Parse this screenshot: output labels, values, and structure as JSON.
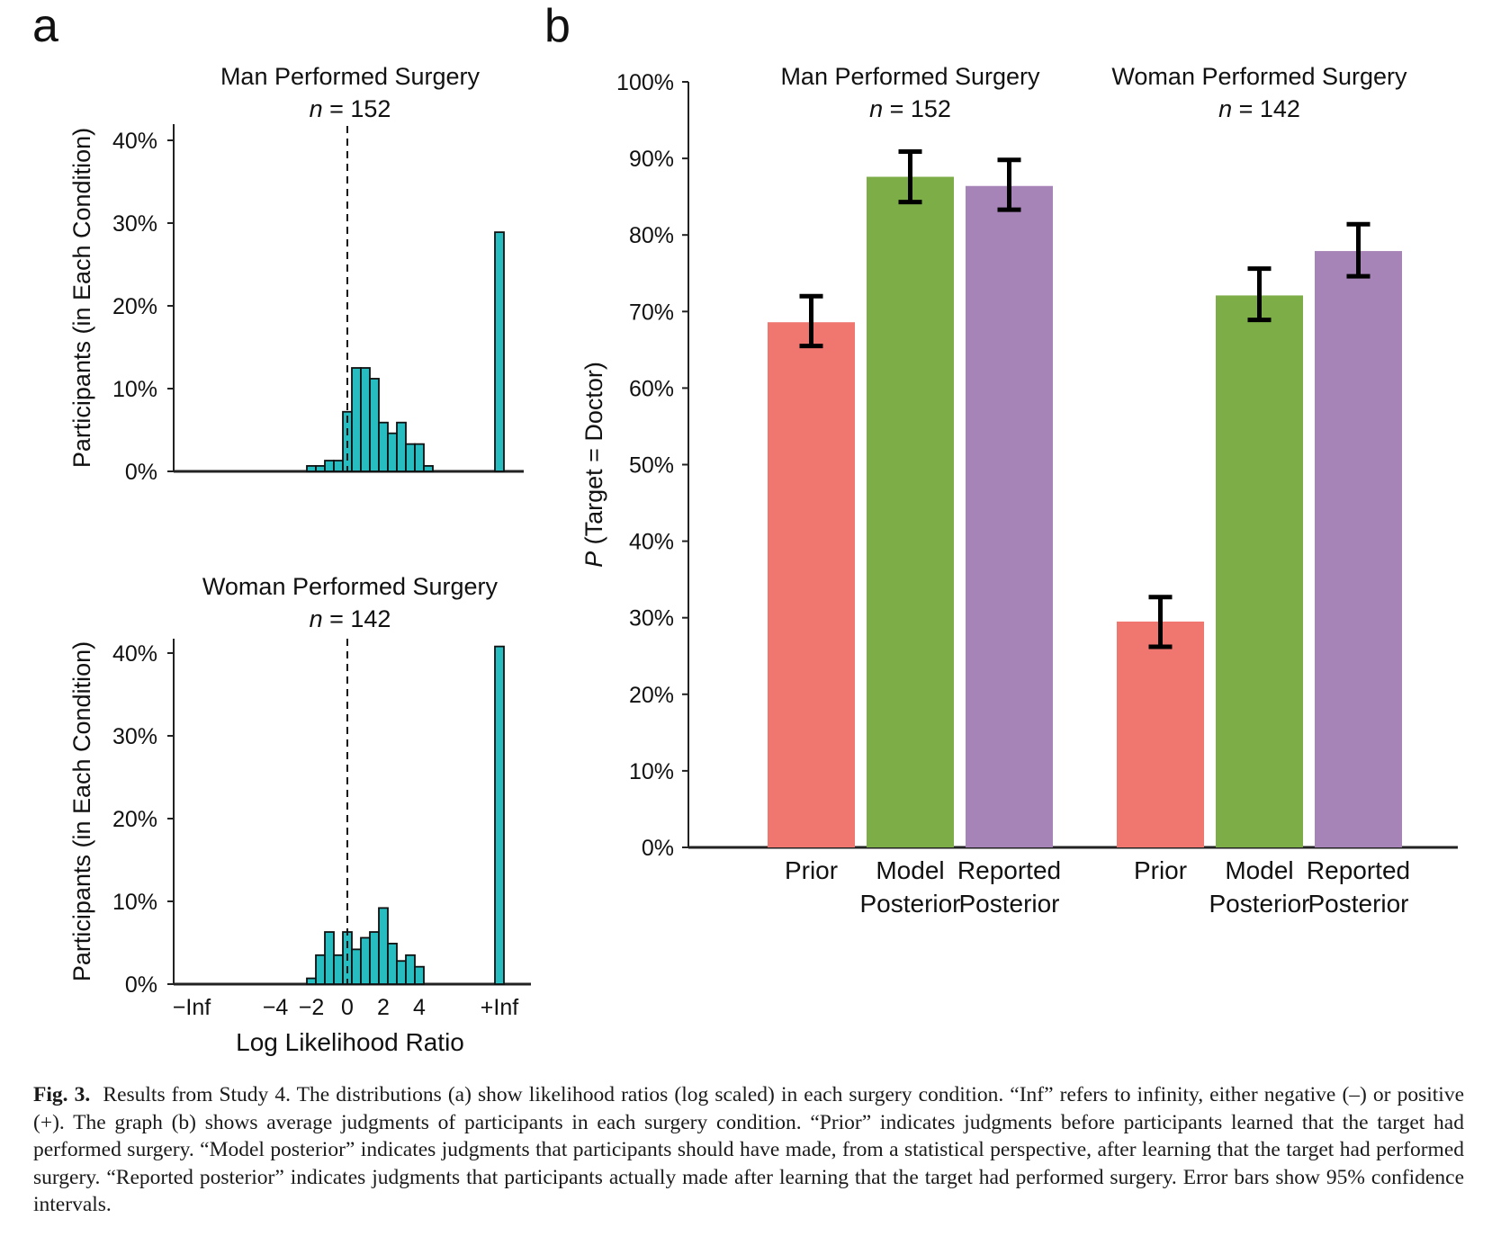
{
  "chart_data": [
    {
      "panel": "a",
      "type": "bar",
      "subtype": "histogram",
      "title": "Man Performed Surgery",
      "n_label": "n",
      "n_value": "= 152",
      "ylabel": "Participants (in Each Condition)",
      "xlabel": "",
      "ylim": [
        0,
        0.42
      ],
      "yticks": [
        0,
        0.1,
        0.2,
        0.3,
        0.4
      ],
      "ytick_labels": [
        "0%",
        "10%",
        "20%",
        "30%",
        "40%"
      ],
      "xticks": [],
      "bin_width": 0.5,
      "bin_centers": [
        -2.0,
        -1.5,
        -1.0,
        -0.5,
        0.0,
        0.5,
        1.0,
        1.5,
        2.0,
        2.5,
        3.0,
        3.5,
        4.0,
        4.5
      ],
      "values": [
        0.0066,
        0.0066,
        0.013,
        0.013,
        0.072,
        0.125,
        0.125,
        0.112,
        0.059,
        0.046,
        0.059,
        0.033,
        0.033,
        0.0066
      ],
      "neg_inf_value": 0,
      "pos_inf_value": 0.289,
      "reference_line_x": 0,
      "bar_color": "#26bcc0"
    },
    {
      "panel": "a",
      "type": "bar",
      "subtype": "histogram",
      "title": "Woman Performed Surgery",
      "n_label": "n",
      "n_value": " = 142",
      "ylabel": "Participants (in Each Condition)",
      "xlabel": "Log Likelihood Ratio",
      "ylim": [
        0,
        0.42
      ],
      "yticks": [
        0,
        0.1,
        0.2,
        0.3,
        0.4
      ],
      "ytick_labels": [
        "0%",
        "10%",
        "20%",
        "30%",
        "40%"
      ],
      "xtick_labels": [
        "−Inf",
        "−4",
        "−2",
        "0",
        "2",
        "4",
        "+Inf"
      ],
      "xtick_values": [
        "-inf",
        -4,
        -2,
        0,
        2,
        4,
        "+inf"
      ],
      "bin_width": 0.5,
      "bin_centers": [
        -2.0,
        -1.5,
        -1.0,
        -0.5,
        0.0,
        0.5,
        1.0,
        1.5,
        2.0,
        2.5,
        3.0,
        3.5,
        4.0
      ],
      "values": [
        0.007,
        0.035,
        0.063,
        0.035,
        0.063,
        0.042,
        0.056,
        0.063,
        0.092,
        0.049,
        0.028,
        0.035,
        0.021
      ],
      "neg_inf_value": 0,
      "pos_inf_value": 0.408,
      "reference_line_x": 0,
      "bar_color": "#26bcc0"
    },
    {
      "panel": "b",
      "type": "bar",
      "subtype": "grouped",
      "ylabel_italic": "P",
      "ylabel_rest": " (Target = Doctor)",
      "ylim": [
        0,
        1
      ],
      "yticks": [
        0,
        0.1,
        0.2,
        0.3,
        0.4,
        0.5,
        0.6,
        0.7,
        0.8,
        0.9,
        1.0
      ],
      "ytick_labels": [
        "0%",
        "10%",
        "20%",
        "30%",
        "40%",
        "50%",
        "60%",
        "70%",
        "80%",
        "90%",
        "100%"
      ],
      "groups": [
        {
          "title": "Man Performed Surgery",
          "n_label": "n",
          "n_value": "= 152",
          "bars": [
            {
              "label_line1": "Prior",
              "label_line2": "",
              "value": 0.686,
              "ci_low": 0.655,
              "ci_high": 0.72,
              "color": "#f07670"
            },
            {
              "label_line1": "Model",
              "label_line2": "Posterior",
              "value": 0.876,
              "ci_low": 0.843,
              "ci_high": 0.909,
              "color": "#7dad47"
            },
            {
              "label_line1": "Reported",
              "label_line2": "Posterior",
              "value": 0.864,
              "ci_low": 0.833,
              "ci_high": 0.898,
              "color": "#a784b8"
            }
          ]
        },
        {
          "title": "Woman Performed Surgery",
          "n_label": "n",
          "n_value": " = 142",
          "bars": [
            {
              "label_line1": "Prior",
              "label_line2": "",
              "value": 0.295,
              "ci_low": 0.262,
              "ci_high": 0.327,
              "color": "#f07670"
            },
            {
              "label_line1": "Model",
              "label_line2": "Posterior",
              "value": 0.721,
              "ci_low": 0.689,
              "ci_high": 0.756,
              "color": "#7dad47"
            },
            {
              "label_line1": "Reported",
              "label_line2": "Posterior",
              "value": 0.779,
              "ci_low": 0.746,
              "ci_high": 0.814,
              "color": "#a784b8"
            }
          ]
        }
      ],
      "error_bar_note": "95% confidence intervals"
    }
  ],
  "panel_labels": {
    "a": "a",
    "b": "b"
  },
  "caption": {
    "figure_label": "Fig. 3.",
    "text": "Results from Study 4. The distributions (a) show likelihood ratios (log scaled) in each surgery condition. “Inf” refers to infinity, either negative (–) or positive (+). The graph (b) shows average judgments of participants in each surgery condition. “Prior” indicates judgments before participants learned that the target had performed surgery. “Model posterior” indicates judgments that participants should have made, from a statistical perspective, after learning that the target had performed surgery. “Reported posterior” indicates judgments that participants actually made after learning that the target had performed surgery. Error bars show 95% confidence intervals."
  }
}
